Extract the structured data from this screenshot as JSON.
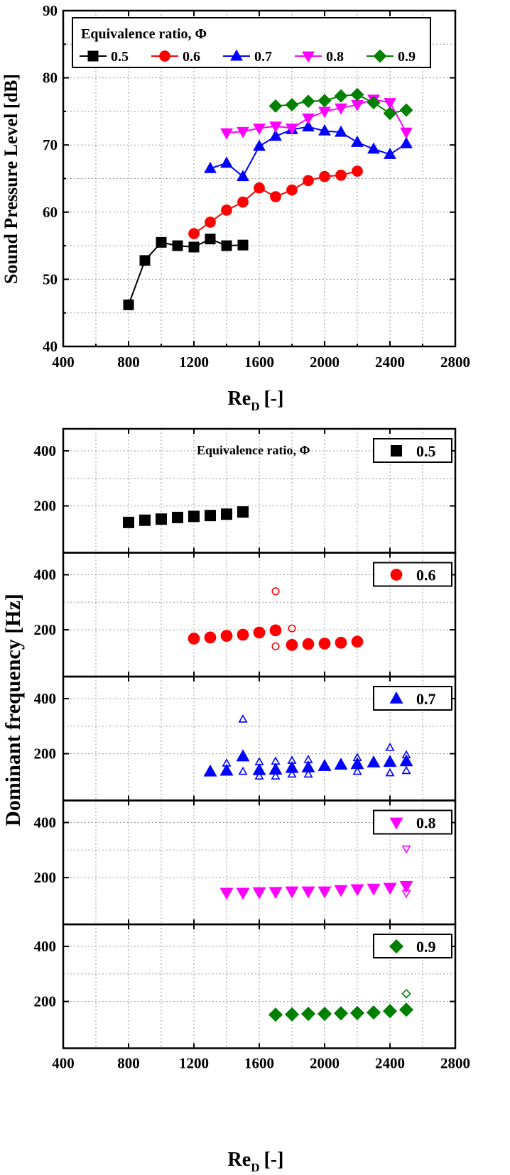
{
  "chart_data": [
    {
      "type": "line",
      "ylabel": "Sound Pressure Level [dB]",
      "xlabel_main": "Re",
      "xlabel_sub": "D",
      "xlabel_unit": "[-]",
      "xlim": [
        400,
        2800
      ],
      "ylim": [
        40,
        90
      ],
      "xticks": [
        400,
        800,
        1200,
        1600,
        2000,
        2400,
        2800
      ],
      "yticks": [
        40,
        50,
        60,
        70,
        80,
        90
      ],
      "grid": true,
      "legend": {
        "title": "Equivalence ratio, Φ",
        "placement": "top-left"
      },
      "series": [
        {
          "name": "0.5",
          "color": "#000000",
          "marker": "square",
          "x": [
            800,
            900,
            1000,
            1100,
            1200,
            1300,
            1400,
            1500
          ],
          "y": [
            46.2,
            52.8,
            55.5,
            55.0,
            54.8,
            56.0,
            55.0,
            55.1
          ]
        },
        {
          "name": "0.6",
          "color": "#ff0000",
          "marker": "circle",
          "x": [
            1200,
            1300,
            1400,
            1500,
            1600,
            1700,
            1800,
            1900,
            2000,
            2100,
            2200
          ],
          "y": [
            56.8,
            58.5,
            60.3,
            61.5,
            63.6,
            62.3,
            63.3,
            64.7,
            65.3,
            65.5,
            66.1
          ]
        },
        {
          "name": "0.7",
          "color": "#0000ff",
          "marker": "triangle-up",
          "x": [
            1300,
            1400,
            1500,
            1600,
            1700,
            1800,
            1900,
            2000,
            2100,
            2200,
            2300,
            2400,
            2500
          ],
          "y": [
            66.5,
            67.3,
            65.3,
            69.8,
            71.3,
            72.3,
            72.7,
            72.1,
            71.9,
            70.4,
            69.4,
            68.6,
            70.2
          ]
        },
        {
          "name": "0.8",
          "color": "#ff00ff",
          "marker": "triangle-down",
          "x": [
            1400,
            1500,
            1600,
            1700,
            1800,
            1900,
            2000,
            2100,
            2200,
            2300,
            2400,
            2500
          ],
          "y": [
            71.8,
            72.0,
            72.5,
            72.8,
            72.5,
            74.0,
            75.0,
            75.5,
            76.0,
            76.8,
            76.3,
            71.9
          ]
        },
        {
          "name": "0.9",
          "color": "#008000",
          "marker": "diamond",
          "x": [
            1700,
            1800,
            1900,
            2000,
            2100,
            2200,
            2300,
            2400,
            2500
          ],
          "y": [
            75.8,
            76.0,
            76.5,
            76.6,
            77.3,
            77.5,
            76.3,
            74.7,
            75.2
          ]
        }
      ]
    },
    {
      "type": "scatter",
      "ylabel": "Dominant frequency [Hz]",
      "xlabel_main": "Re",
      "xlabel_sub": "D",
      "xlabel_unit": "[-]",
      "xlim": [
        400,
        2800
      ],
      "ylim_each_panel": [
        30,
        480
      ],
      "xticks": [
        400,
        800,
        1200,
        1600,
        2000,
        2400,
        2800
      ],
      "yticks": [
        200,
        400
      ],
      "grid": true,
      "annotation": "Equivalence ratio, Φ",
      "panels": [
        {
          "name": "0.5",
          "color": "#000000",
          "marker": "square",
          "primary": {
            "x": [
              800,
              900,
              1000,
              1100,
              1200,
              1300,
              1400,
              1500
            ],
            "y": [
              140,
              148,
              152,
              158,
              162,
              165,
              170,
              178
            ]
          },
          "secondary": {
            "x": [],
            "y": []
          }
        },
        {
          "name": "0.6",
          "color": "#ff0000",
          "marker": "circle",
          "primary": {
            "x": [
              1200,
              1300,
              1400,
              1500,
              1600,
              1700,
              1800,
              1900,
              2000,
              2100,
              2200
            ],
            "y": [
              168,
              172,
              178,
              182,
              190,
              198,
              145,
              148,
              150,
              153,
              157
            ]
          },
          "secondary": {
            "x": [
              1700,
              1700,
              1800
            ],
            "y": [
              340,
              140,
              205
            ]
          }
        },
        {
          "name": "0.7",
          "color": "#0000ff",
          "marker": "triangle-up",
          "primary": {
            "x": [
              1300,
              1400,
              1500,
              1600,
              1700,
              1800,
              1900,
              2000,
              2100,
              2200,
              2300,
              2400,
              2500
            ],
            "y": [
              135,
              138,
              190,
              140,
              142,
              148,
              150,
              155,
              160,
              162,
              168,
              170,
              172
            ]
          },
          "secondary": {
            "x": [
              1400,
              1500,
              1500,
              1600,
              1600,
              1700,
              1700,
              1800,
              1800,
              1900,
              1900,
              2200,
              2200,
              2400,
              2400,
              2500,
              2500
            ],
            "y": [
              165,
              325,
              135,
              170,
              118,
              172,
              118,
              175,
              125,
              178,
              125,
              185,
              135,
              222,
              130,
              195,
              138
            ]
          }
        },
        {
          "name": "0.8",
          "color": "#ff00ff",
          "marker": "triangle-down",
          "primary": {
            "x": [
              1400,
              1500,
              1600,
              1700,
              1800,
              1900,
              2000,
              2100,
              2200,
              2300,
              2400,
              2500
            ],
            "y": [
              145,
              145,
              147,
              148,
              150,
              150,
              150,
              155,
              158,
              160,
              163,
              170
            ]
          },
          "secondary": {
            "x": [
              2500,
              2500
            ],
            "y": [
              305,
              143
            ]
          }
        },
        {
          "name": "0.9",
          "color": "#008000",
          "marker": "diamond",
          "primary": {
            "x": [
              1700,
              1800,
              1900,
              2000,
              2100,
              2200,
              2300,
              2400,
              2500
            ],
            "y": [
              152,
              153,
              155,
              155,
              157,
              158,
              160,
              165,
              170
            ]
          },
          "secondary": {
            "x": [
              2500
            ],
            "y": [
              228
            ]
          }
        }
      ]
    }
  ]
}
